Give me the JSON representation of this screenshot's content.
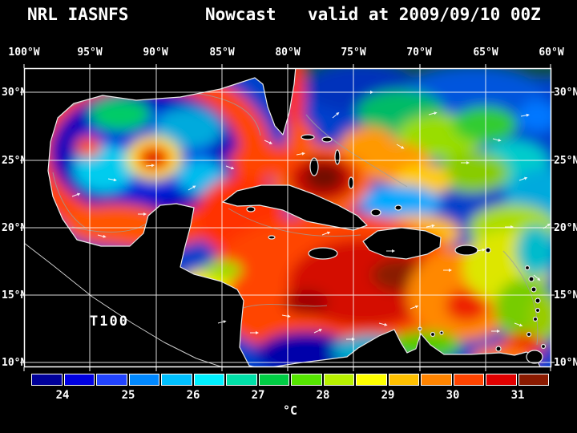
{
  "title": {
    "left": "NRL IASNFS",
    "center": "Nowcast",
    "right": "valid at 2009/09/10 00Z"
  },
  "map": {
    "label": "T100",
    "lon_labels": [
      "100°W",
      "95°W",
      "90°W",
      "85°W",
      "80°W",
      "75°W",
      "70°W",
      "65°W",
      "60°W"
    ],
    "lat_labels": [
      "30°N",
      "25°N",
      "20°N",
      "15°N",
      "10°N"
    ]
  },
  "colorbar": {
    "tick_labels": [
      "24",
      "25",
      "26",
      "27",
      "28",
      "29",
      "30",
      "31"
    ],
    "units": "°C",
    "colors": [
      "#000099",
      "#0000e0",
      "#2244ff",
      "#0088ff",
      "#00c0ff",
      "#00f0ff",
      "#00e0a8",
      "#00cc44",
      "#55e600",
      "#b8f000",
      "#ffff00",
      "#ffc000",
      "#ff8400",
      "#ff4400",
      "#e00000",
      "#8a1a00"
    ]
  },
  "chart_data": {
    "type": "heatmap",
    "title": "NRL IASNFS Nowcast valid at 2009/09/10 00Z",
    "variable": "T100",
    "units": "°C",
    "colorbar_ticks": [
      24,
      25,
      26,
      27,
      28,
      29,
      30,
      31
    ],
    "value_range": [
      23.5,
      31.5
    ],
    "lon_range": [
      "100°W",
      "60°W"
    ],
    "lat_range": [
      "10°N",
      "30°N"
    ],
    "grid_interval_deg": 5,
    "legend_position": "bottom",
    "region": "Gulf of Mexico and Caribbean Sea",
    "notes": "Discrete 16-step rainbow palette from dark blue (cool ~23.5°C) to maroon (warm ~31.5°C); warmest water in central Caribbean and north of Cuba; coolest in Gulf of Mexico interior and southern Caribbean upwelling."
  }
}
